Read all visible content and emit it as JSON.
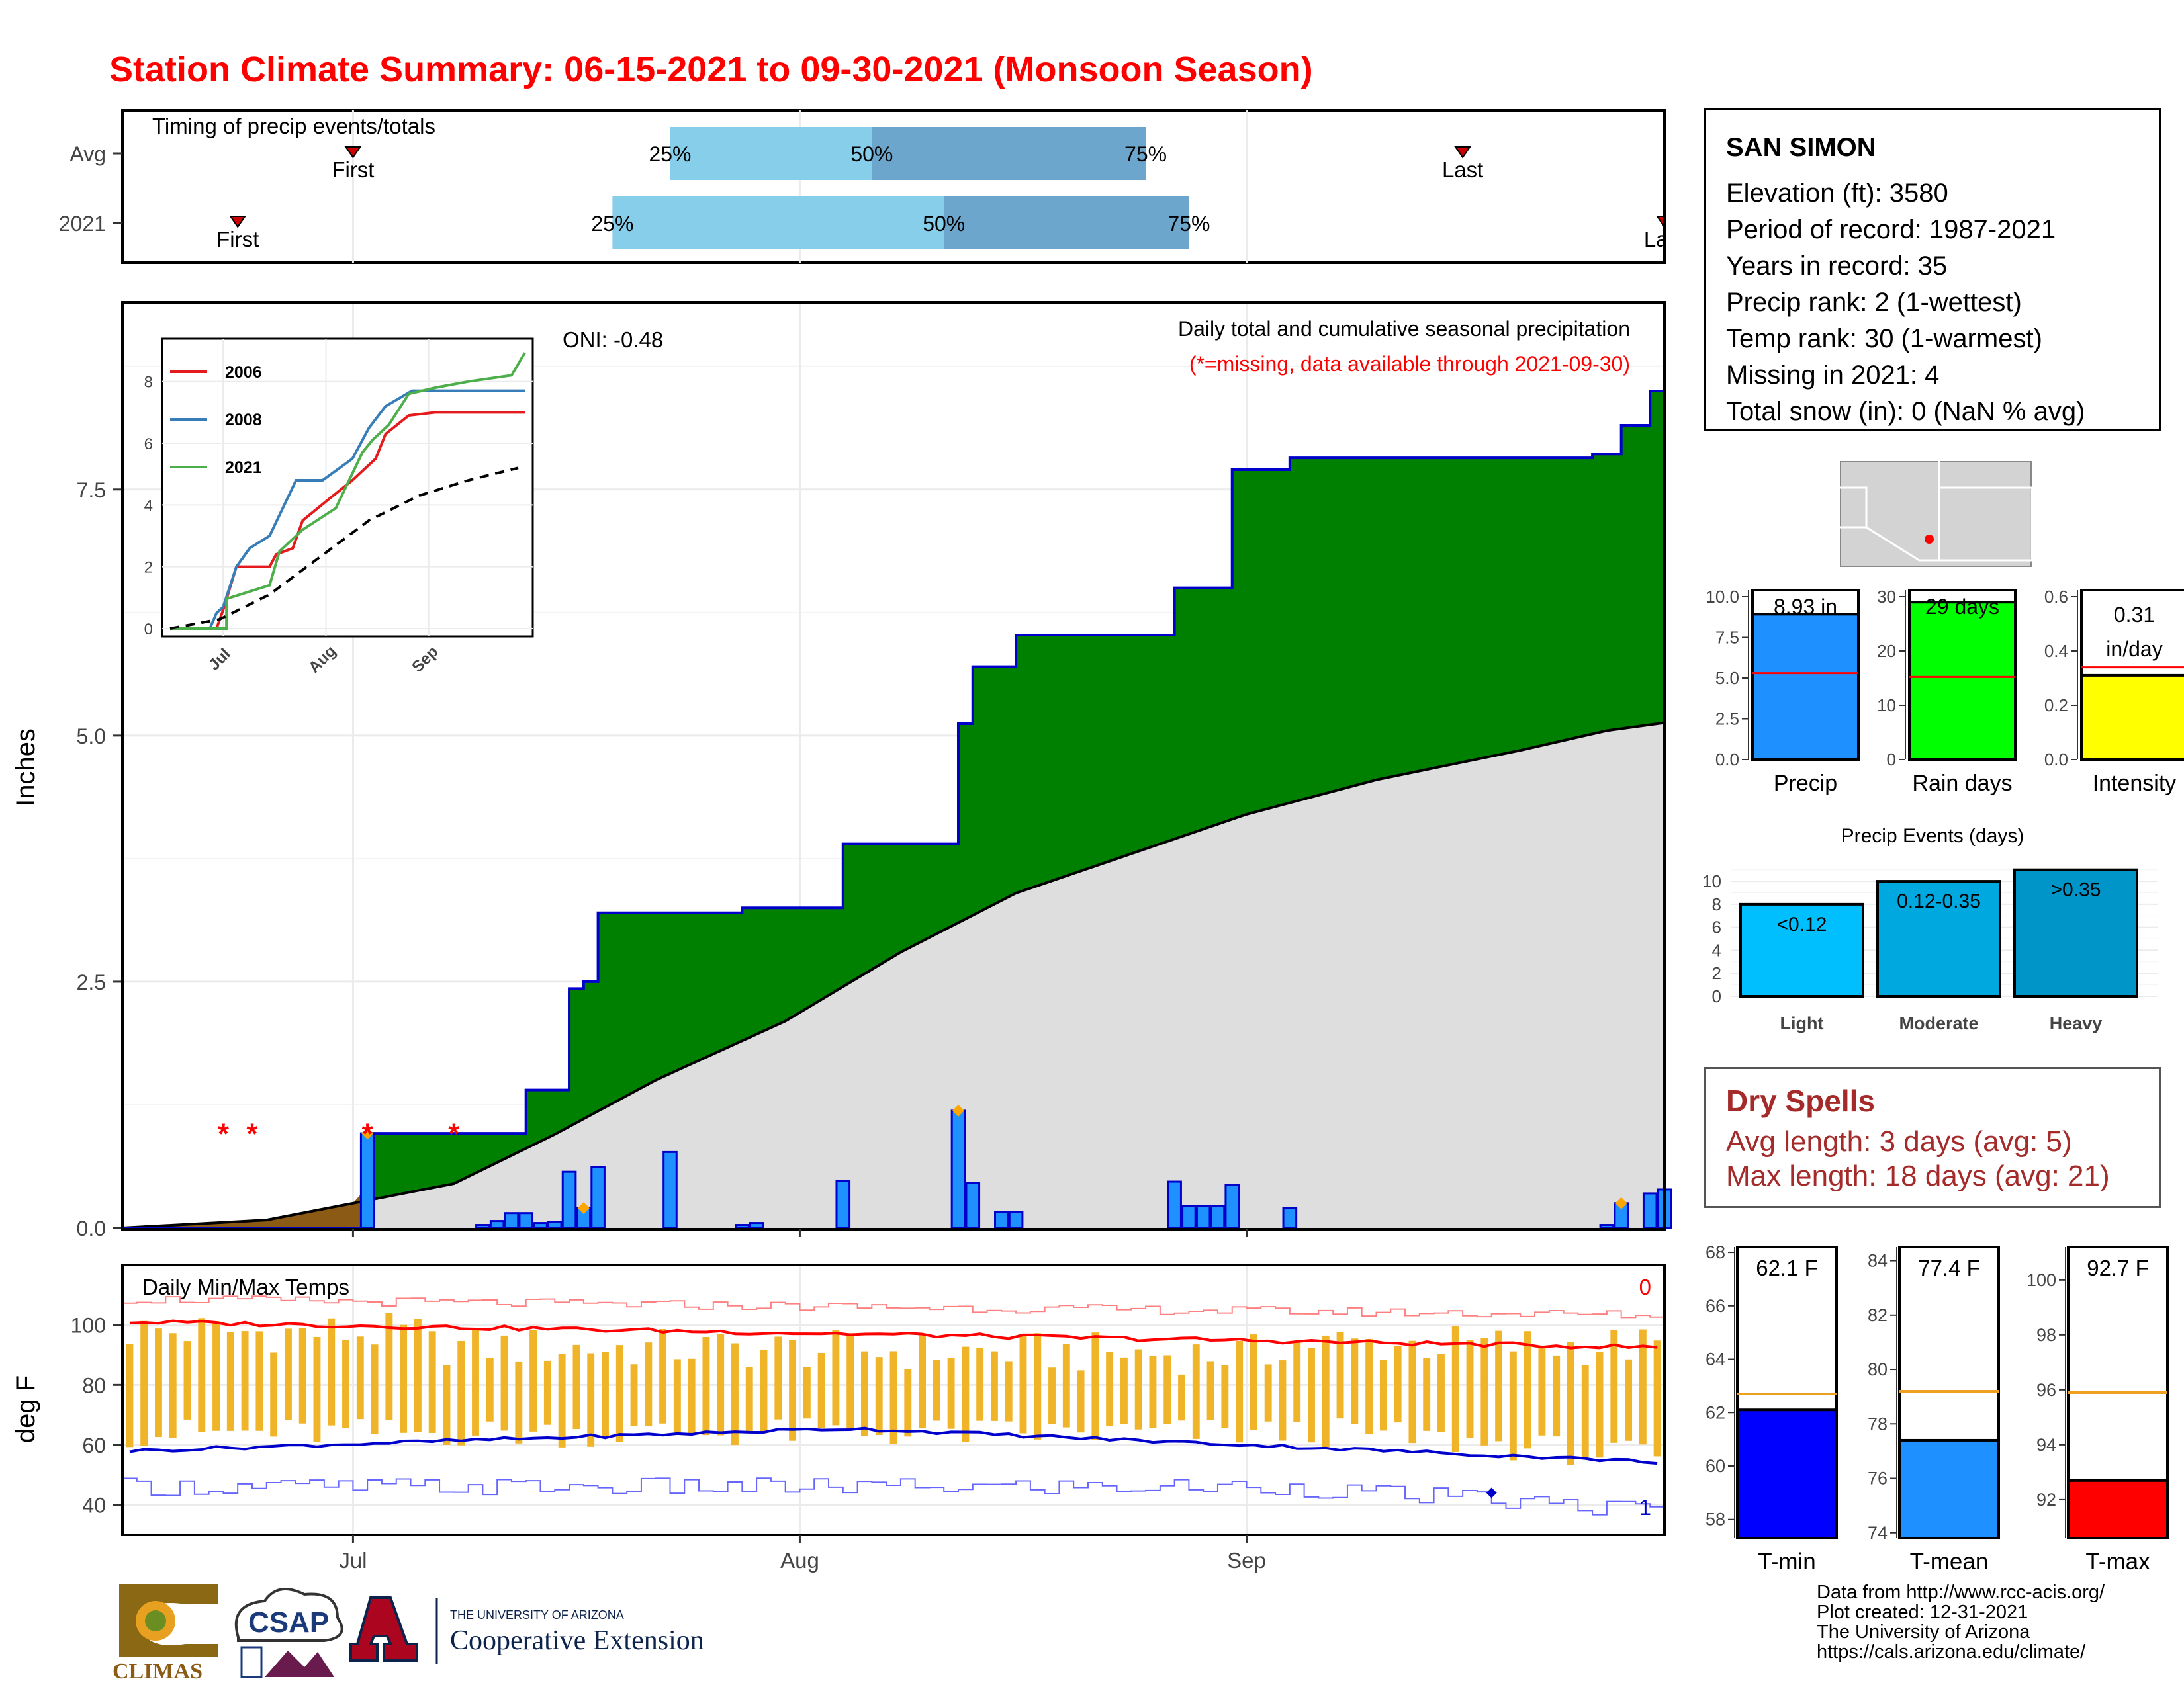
{
  "title": "Station Climate Summary: 06-15-2021 to 09-30-2021 (Monsoon Season)",
  "timing": {
    "caption": "Timing of precip events/totals",
    "rows": [
      {
        "label": "Avg",
        "first": "2021-07-01",
        "q25": "2021-07-23",
        "q50": "2021-08-06",
        "q75": "2021-08-25",
        "last": "2021-09-16",
        "first_label": "First",
        "last_label": "Last"
      },
      {
        "label": "2021",
        "first": "2021-06-23",
        "q25": "2021-07-19",
        "q50": "2021-08-11",
        "q75": "2021-08-28",
        "last": "2021-09-30",
        "first_label": "First",
        "last_label": "Last"
      }
    ],
    "pct_labels": [
      "25%",
      "50%",
      "75%"
    ]
  },
  "main_chart": {
    "annotation_title": "Daily total and cumulative seasonal precipitation",
    "annotation_missing": "(*=missing, data available through 2021-09-30)",
    "oni": "ONI: -0.48",
    "ylabel": "Inches",
    "yticks": [
      "0.0",
      "2.5",
      "5.0",
      "7.5"
    ],
    "xticks": [
      "Jul",
      "Aug",
      "Sep"
    ]
  },
  "temp_chart": {
    "caption": "Daily Min/Max Temps",
    "ylabel": "deg F",
    "yticks": [
      "40",
      "60",
      "80",
      "100"
    ],
    "record_high_count": "0",
    "record_low_count": "1"
  },
  "station": {
    "name": "SAN SIMON",
    "elevation": "Elevation (ft): 3580",
    "period": "Period of record: 1987-2021",
    "years": "Years in record: 35",
    "precip_rank": "Precip rank: 2 (1-wettest)",
    "temp_rank": "Temp rank: 30 (1-warmest)",
    "missing": "Missing in 2021: 4",
    "snow": "Total snow (in): 0 (NaN % avg)"
  },
  "mini_bars": [
    {
      "name": "Precip",
      "label": "8.93 in",
      "value": 8.93,
      "avg": 5.3,
      "ymax": 10,
      "ticks": [
        "0.0",
        "2.5",
        "5.0",
        "7.5",
        "10.0"
      ],
      "color": "#1e90ff"
    },
    {
      "name": "Rain days",
      "label": "29 days",
      "value": 29,
      "avg": 15.2,
      "ymax": 30,
      "ticks": [
        "0",
        "10",
        "20",
        "30"
      ],
      "color": "#00ff00"
    },
    {
      "name": "Intensity",
      "label": "0.31",
      "label2": "in/day",
      "value": 0.31,
      "avg": 0.34,
      "ymax": 0.6,
      "ticks": [
        "0.0",
        "0.2",
        "0.4",
        "0.6"
      ],
      "color": "#ffff00"
    }
  ],
  "precip_events": {
    "title": "Precip Events (days)",
    "ticks": [
      "0",
      "2",
      "4",
      "6",
      "8",
      "10"
    ],
    "bars": [
      {
        "name": "Light",
        "label": "<0.12",
        "value": 8,
        "color": "#00bfff"
      },
      {
        "name": "Moderate",
        "label": "0.12-0.35",
        "value": 10,
        "color": "#00a8e0"
      },
      {
        "name": "Heavy",
        "label": ">0.35",
        "value": 11,
        "color": "#0095c8"
      }
    ]
  },
  "dry_spells": {
    "title": "Dry Spells",
    "avg": "Avg length: 3 days (avg: 5)",
    "max": "Max length: 18 days (avg: 21)"
  },
  "temp_bars": [
    {
      "name": "T-min",
      "label": "62.1 F",
      "value": 62.1,
      "avg": 62.7,
      "ymin": 57.3,
      "ymax": 68.2,
      "ticks": [
        "58",
        "60",
        "62",
        "64",
        "66",
        "68"
      ],
      "color": "#0000ff"
    },
    {
      "name": "T-mean",
      "label": "77.4 F",
      "value": 77.4,
      "avg": 79.2,
      "ymin": 73.8,
      "ymax": 84.5,
      "ticks": [
        "74",
        "76",
        "78",
        "80",
        "82",
        "84"
      ],
      "color": "#1e90ff"
    },
    {
      "name": "T-max",
      "label": "92.7 F",
      "value": 92.7,
      "avg": 95.9,
      "ymin": 90.6,
      "ymax": 101.2,
      "ticks": [
        "92",
        "94",
        "96",
        "98",
        "100"
      ],
      "color": "#ff0000"
    }
  ],
  "inset": {
    "legend": [
      "2006",
      "2008",
      "2021"
    ],
    "colors": [
      "#e41a1c",
      "#377eb8",
      "#4daf4a"
    ],
    "yticks": [
      "0",
      "2",
      "4",
      "6",
      "8"
    ],
    "xticks": [
      "Jul",
      "Aug",
      "Sep"
    ]
  },
  "credits": {
    "line1": "Data from http://www.rcc-acis.org/",
    "line2": "Plot created: 12-31-2021",
    "line3": "The University of Arizona",
    "line4": "https://cals.arizona.edu/climate/"
  },
  "logos": {
    "climas": "CLIMAS",
    "csap": "CSAP",
    "ua_small": "THE UNIVERSITY OF ARIZONA",
    "ua_big": "Cooperative Extension"
  },
  "chart_data": {
    "type": "area",
    "title": "Daily total and cumulative seasonal precipitation",
    "ylabel": "Inches",
    "ylim": [
      0,
      9.5
    ],
    "x_range": [
      "2021-06-15",
      "2021-09-30"
    ],
    "daily_precip_2021": [
      {
        "date": "2021-07-02",
        "in": 0.96
      },
      {
        "date": "2021-07-10",
        "in": 0.03
      },
      {
        "date": "2021-07-11",
        "in": 0.07
      },
      {
        "date": "2021-07-12",
        "in": 0.15
      },
      {
        "date": "2021-07-13",
        "in": 0.15
      },
      {
        "date": "2021-07-14",
        "in": 0.05
      },
      {
        "date": "2021-07-15",
        "in": 0.06
      },
      {
        "date": "2021-07-16",
        "in": 0.57
      },
      {
        "date": "2021-07-17",
        "in": 0.2
      },
      {
        "date": "2021-07-18",
        "in": 0.62
      },
      {
        "date": "2021-07-23",
        "in": 0.77
      },
      {
        "date": "2021-07-28",
        "in": 0.03
      },
      {
        "date": "2021-07-29",
        "in": 0.05
      },
      {
        "date": "2021-08-04",
        "in": 0.48
      },
      {
        "date": "2021-08-12",
        "in": 1.19
      },
      {
        "date": "2021-08-13",
        "in": 0.46
      },
      {
        "date": "2021-08-15",
        "in": 0.16
      },
      {
        "date": "2021-08-16",
        "in": 0.16
      },
      {
        "date": "2021-08-27",
        "in": 0.47
      },
      {
        "date": "2021-08-28",
        "in": 0.22
      },
      {
        "date": "2021-08-29",
        "in": 0.22
      },
      {
        "date": "2021-08-30",
        "in": 0.22
      },
      {
        "date": "2021-08-31",
        "in": 0.44
      },
      {
        "date": "2021-09-04",
        "in": 0.2
      },
      {
        "date": "2021-09-26",
        "in": 0.03
      },
      {
        "date": "2021-09-27",
        "in": 0.25
      },
      {
        "date": "2021-09-29",
        "in": 0.35
      },
      {
        "date": "2021-09-30",
        "in": 0.39
      }
    ],
    "cumulative_2021": [
      {
        "date": "2021-06-15",
        "in": 0.0
      },
      {
        "date": "2021-07-01",
        "in": 0.0
      },
      {
        "date": "2021-07-02",
        "in": 0.96
      },
      {
        "date": "2021-07-13",
        "in": 1.4
      },
      {
        "date": "2021-07-16",
        "in": 2.43
      },
      {
        "date": "2021-07-17",
        "in": 2.5
      },
      {
        "date": "2021-07-18",
        "in": 3.2
      },
      {
        "date": "2021-07-23",
        "in": 3.2
      },
      {
        "date": "2021-07-28",
        "in": 3.25
      },
      {
        "date": "2021-08-04",
        "in": 3.9
      },
      {
        "date": "2021-08-12",
        "in": 5.12
      },
      {
        "date": "2021-08-13",
        "in": 5.7
      },
      {
        "date": "2021-08-16",
        "in": 6.02
      },
      {
        "date": "2021-08-27",
        "in": 6.5
      },
      {
        "date": "2021-08-31",
        "in": 7.7
      },
      {
        "date": "2021-09-04",
        "in": 7.82
      },
      {
        "date": "2021-09-25",
        "in": 7.86
      },
      {
        "date": "2021-09-27",
        "in": 8.15
      },
      {
        "date": "2021-09-29",
        "in": 8.5
      },
      {
        "date": "2021-09-30",
        "in": 8.93
      }
    ],
    "cumulative_avg": [
      {
        "date": "2021-06-15",
        "in": 0.0
      },
      {
        "date": "2021-06-25",
        "in": 0.08
      },
      {
        "date": "2021-07-01",
        "in": 0.25
      },
      {
        "date": "2021-07-08",
        "in": 0.45
      },
      {
        "date": "2021-07-15",
        "in": 0.95
      },
      {
        "date": "2021-07-22",
        "in": 1.5
      },
      {
        "date": "2021-07-31",
        "in": 2.1
      },
      {
        "date": "2021-08-08",
        "in": 2.8
      },
      {
        "date": "2021-08-16",
        "in": 3.4
      },
      {
        "date": "2021-08-24",
        "in": 3.8
      },
      {
        "date": "2021-09-01",
        "in": 4.2
      },
      {
        "date": "2021-09-10",
        "in": 4.55
      },
      {
        "date": "2021-09-20",
        "in": 4.85
      },
      {
        "date": "2021-09-26",
        "in": 5.05
      },
      {
        "date": "2021-09-30",
        "in": 5.13
      }
    ],
    "missing_dates": [
      "2021-06-22",
      "2021-06-24",
      "2021-07-02",
      "2021-07-08"
    ],
    "temps_series": [
      "Daily Max",
      "Daily Min",
      "Avg Max",
      "Avg Min",
      "Record Max",
      "Record Min"
    ]
  }
}
